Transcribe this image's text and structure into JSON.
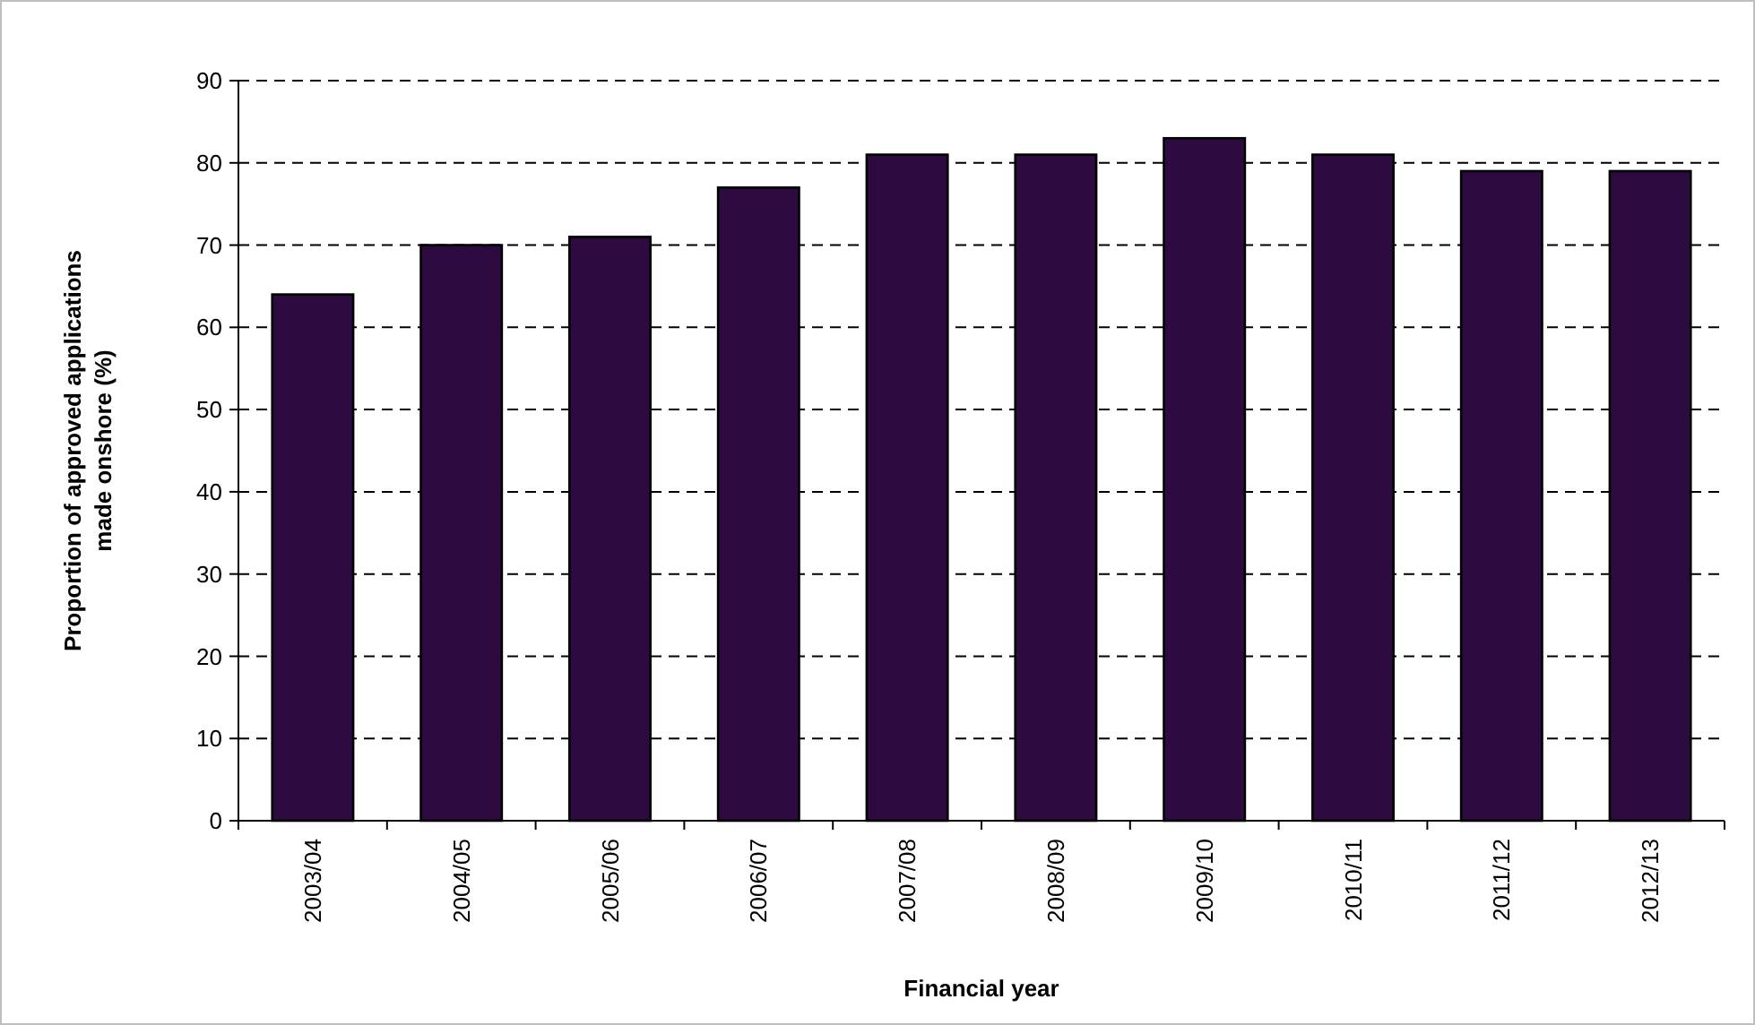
{
  "chart_data": {
    "type": "bar",
    "xlabel": "Financial year",
    "ylabel": "Proportion of approved applications made onshore (%)",
    "categories": [
      "2003/04",
      "2004/05",
      "2005/06",
      "2006/07",
      "2007/08",
      "2008/09",
      "2009/10",
      "2010/11",
      "2011/12",
      "2012/13"
    ],
    "values": [
      64,
      70,
      71,
      77,
      81,
      81,
      83,
      81,
      79,
      79
    ],
    "color": "#2d0a3f",
    "ylim": [
      0,
      90
    ],
    "yticks": [
      0,
      10,
      20,
      30,
      40,
      50,
      60,
      70,
      80,
      90
    ],
    "grid": "y"
  }
}
